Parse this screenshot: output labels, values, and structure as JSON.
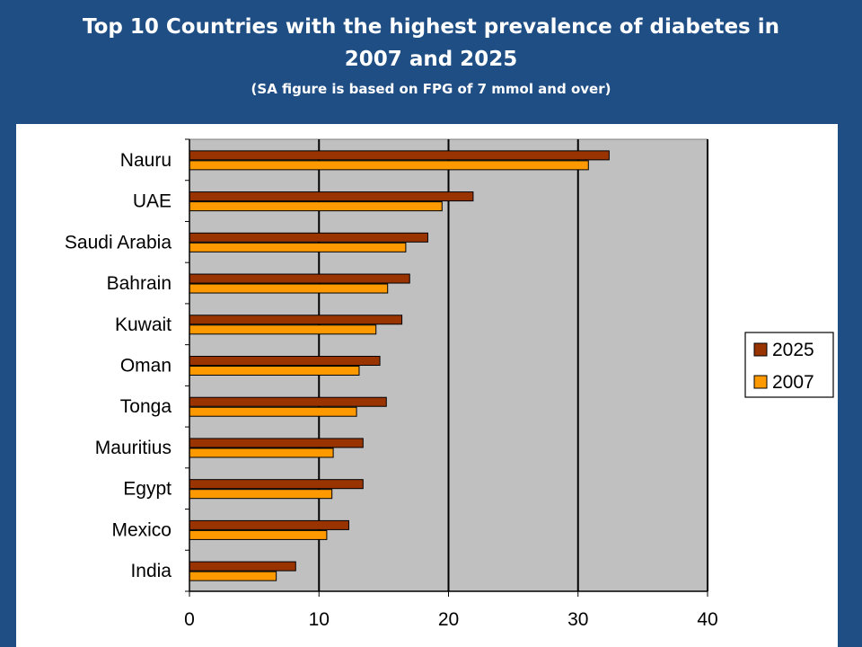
{
  "slide": {
    "title": "Top 10 Countries with the highest prevalence of diabetes in 2007 and 2025",
    "subtitle": "(SA figure is based on FPG of 7 mmol and over)"
  },
  "chart_data": {
    "type": "bar",
    "orientation": "horizontal",
    "title": "Top 10 Countries with the highest prevalence of diabetes in 2007 and 2025",
    "subtitle": "(SA figure is based on FPG of 7 mmol and over)",
    "categories": [
      "Nauru",
      "UAE",
      "Saudi Arabia",
      "Bahrain",
      "Kuwait",
      "Oman",
      "Tonga",
      "Mauritius",
      "Egypt",
      "Mexico",
      "India"
    ],
    "series": [
      {
        "name": "2025",
        "color": "#993300",
        "values": [
          32.4,
          21.9,
          18.4,
          17.0,
          16.4,
          14.7,
          15.2,
          13.4,
          13.4,
          12.3,
          8.2
        ]
      },
      {
        "name": "2007",
        "color": "#ff9900",
        "values": [
          30.8,
          19.5,
          16.7,
          15.3,
          14.4,
          13.1,
          12.9,
          11.1,
          11.0,
          10.6,
          6.7
        ]
      }
    ],
    "xlim": [
      0,
      40
    ],
    "xticks": [
      "0",
      "10",
      "20",
      "30",
      "40"
    ],
    "xlabel": "",
    "ylabel": "",
    "grid": true,
    "plot_background": "#c0c0c0",
    "legend_position": "right"
  }
}
